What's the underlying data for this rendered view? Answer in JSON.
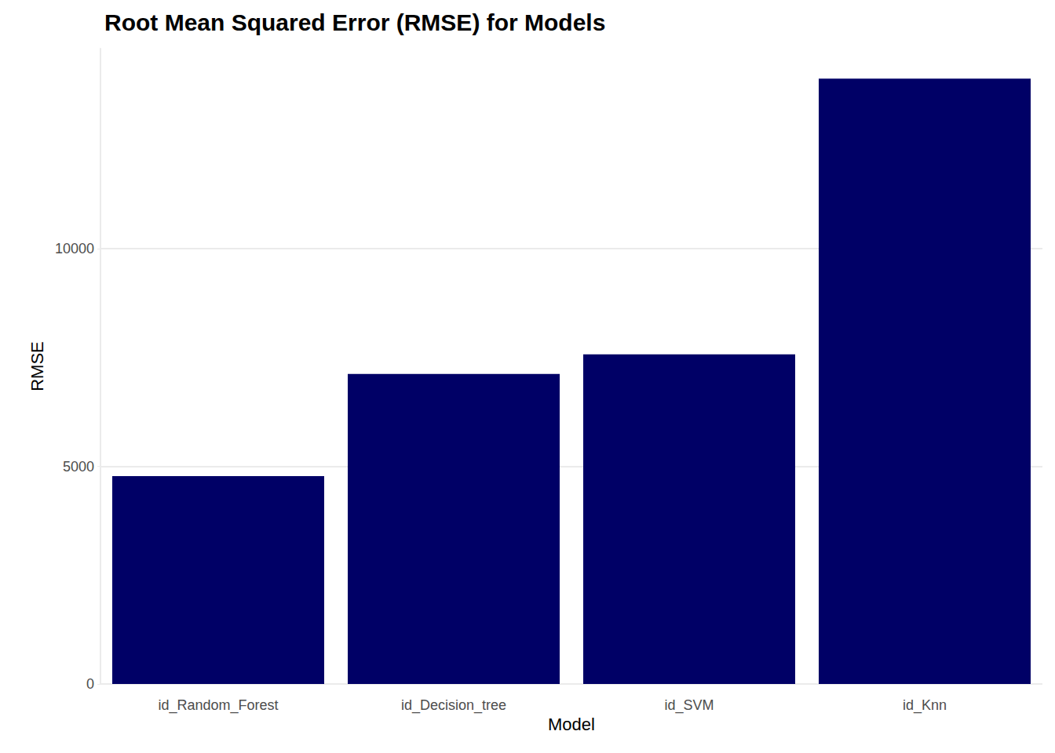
{
  "chart_data": {
    "type": "bar",
    "title": "Root Mean Squared Error (RMSE) for Models",
    "x_label": "Model",
    "y_label": "RMSE",
    "categories": [
      "id_Random_Forest",
      "id_Decision_tree",
      "id_SVM",
      "id_Knn"
    ],
    "values": [
      4775,
      7125,
      7575,
      13910
    ],
    "color": "#000066",
    "ylim": [
      0,
      14600
    ],
    "yticks": [
      0,
      5000,
      10000
    ],
    "grid": true
  }
}
